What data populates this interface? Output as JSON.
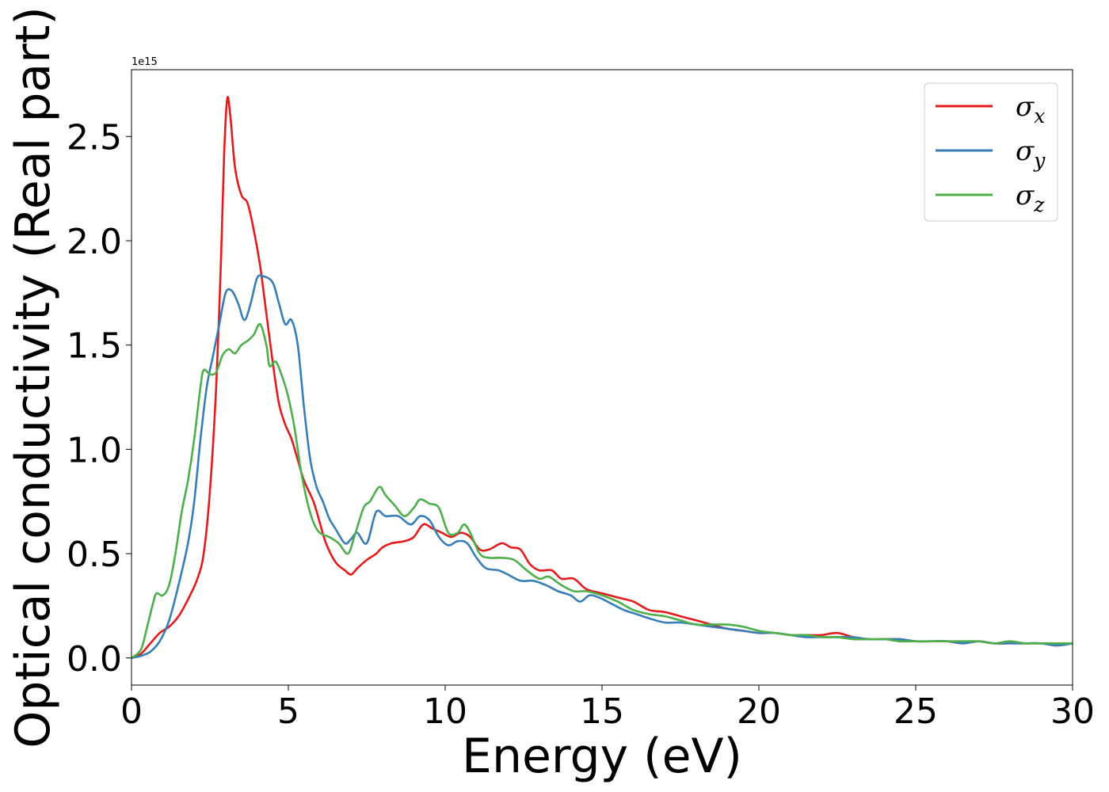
{
  "chart_data": {
    "type": "line",
    "title": "",
    "xlabel": "Energy (eV)",
    "ylabel": "Optical conductivity (Real part)",
    "y_offset_text": "1e15",
    "xlim": [
      0,
      30
    ],
    "ylim": [
      -0.13,
      2.82
    ],
    "xticks": [
      0,
      5,
      10,
      15,
      20,
      25,
      30
    ],
    "yticks": [
      0.0,
      0.5,
      1.0,
      1.5,
      2.0,
      2.5
    ],
    "xtick_labels": [
      "0",
      "5",
      "10",
      "15",
      "20",
      "25",
      "30"
    ],
    "ytick_labels": [
      "0.0",
      "0.5",
      "1.0",
      "1.5",
      "2.0",
      "2.5"
    ],
    "grid": false,
    "legend_position": "top-right",
    "series": [
      {
        "name": "σ",
        "subscript": "x",
        "color": "#e41a1c",
        "points": [
          [
            0,
            0
          ],
          [
            0.3,
            0.02
          ],
          [
            0.6,
            0.07
          ],
          [
            0.9,
            0.12
          ],
          [
            1.2,
            0.15
          ],
          [
            1.5,
            0.2
          ],
          [
            1.8,
            0.28
          ],
          [
            2.1,
            0.38
          ],
          [
            2.3,
            0.5
          ],
          [
            2.5,
            0.8
          ],
          [
            2.7,
            1.3
          ],
          [
            2.85,
            1.9
          ],
          [
            2.95,
            2.4
          ],
          [
            3.05,
            2.68
          ],
          [
            3.15,
            2.6
          ],
          [
            3.3,
            2.35
          ],
          [
            3.5,
            2.22
          ],
          [
            3.7,
            2.18
          ],
          [
            3.9,
            2.05
          ],
          [
            4.1,
            1.88
          ],
          [
            4.3,
            1.65
          ],
          [
            4.5,
            1.42
          ],
          [
            4.7,
            1.22
          ],
          [
            4.9,
            1.12
          ],
          [
            5.1,
            1.05
          ],
          [
            5.3,
            0.95
          ],
          [
            5.5,
            0.85
          ],
          [
            5.8,
            0.75
          ],
          [
            6.0,
            0.65
          ],
          [
            6.2,
            0.55
          ],
          [
            6.5,
            0.46
          ],
          [
            6.8,
            0.42
          ],
          [
            7.0,
            0.4
          ],
          [
            7.2,
            0.43
          ],
          [
            7.5,
            0.47
          ],
          [
            7.8,
            0.5
          ],
          [
            8.0,
            0.53
          ],
          [
            8.3,
            0.55
          ],
          [
            8.7,
            0.56
          ],
          [
            9.0,
            0.58
          ],
          [
            9.3,
            0.64
          ],
          [
            9.6,
            0.62
          ],
          [
            9.9,
            0.6
          ],
          [
            10.2,
            0.58
          ],
          [
            10.5,
            0.6
          ],
          [
            10.8,
            0.58
          ],
          [
            11.1,
            0.52
          ],
          [
            11.4,
            0.52
          ],
          [
            11.8,
            0.55
          ],
          [
            12.1,
            0.53
          ],
          [
            12.4,
            0.52
          ],
          [
            12.7,
            0.45
          ],
          [
            13.0,
            0.42
          ],
          [
            13.4,
            0.42
          ],
          [
            13.7,
            0.38
          ],
          [
            14.1,
            0.38
          ],
          [
            14.5,
            0.33
          ],
          [
            15.0,
            0.31
          ],
          [
            15.5,
            0.29
          ],
          [
            16.0,
            0.27
          ],
          [
            16.5,
            0.23
          ],
          [
            17.0,
            0.22
          ],
          [
            17.5,
            0.2
          ],
          [
            18.0,
            0.18
          ],
          [
            18.5,
            0.16
          ],
          [
            19.0,
            0.14
          ],
          [
            19.5,
            0.13
          ],
          [
            20.0,
            0.12
          ],
          [
            20.5,
            0.12
          ],
          [
            21.0,
            0.11
          ],
          [
            21.5,
            0.11
          ],
          [
            22.0,
            0.11
          ],
          [
            22.5,
            0.12
          ],
          [
            23.0,
            0.1
          ],
          [
            23.5,
            0.09
          ],
          [
            24.0,
            0.09
          ],
          [
            24.5,
            0.09
          ],
          [
            25.0,
            0.08
          ],
          [
            25.5,
            0.08
          ],
          [
            26.0,
            0.08
          ],
          [
            26.5,
            0.07
          ],
          [
            27.0,
            0.08
          ],
          [
            27.5,
            0.07
          ],
          [
            28.0,
            0.07
          ],
          [
            28.5,
            0.07
          ],
          [
            29.0,
            0.07
          ],
          [
            29.5,
            0.06
          ],
          [
            30.0,
            0.07
          ]
        ]
      },
      {
        "name": "σ",
        "subscript": "y",
        "color": "#377eb8",
        "points": [
          [
            0,
            0
          ],
          [
            0.3,
            0.01
          ],
          [
            0.6,
            0.03
          ],
          [
            0.9,
            0.08
          ],
          [
            1.2,
            0.18
          ],
          [
            1.5,
            0.35
          ],
          [
            1.8,
            0.55
          ],
          [
            2.0,
            0.75
          ],
          [
            2.2,
            1.05
          ],
          [
            2.4,
            1.3
          ],
          [
            2.6,
            1.45
          ],
          [
            2.8,
            1.6
          ],
          [
            3.0,
            1.75
          ],
          [
            3.2,
            1.76
          ],
          [
            3.4,
            1.7
          ],
          [
            3.6,
            1.62
          ],
          [
            3.8,
            1.7
          ],
          [
            4.0,
            1.82
          ],
          [
            4.2,
            1.83
          ],
          [
            4.5,
            1.8
          ],
          [
            4.7,
            1.7
          ],
          [
            4.9,
            1.6
          ],
          [
            5.1,
            1.62
          ],
          [
            5.3,
            1.5
          ],
          [
            5.5,
            1.2
          ],
          [
            5.7,
            0.95
          ],
          [
            5.9,
            0.82
          ],
          [
            6.1,
            0.75
          ],
          [
            6.3,
            0.67
          ],
          [
            6.5,
            0.62
          ],
          [
            6.8,
            0.55
          ],
          [
            7.0,
            0.57
          ],
          [
            7.2,
            0.6
          ],
          [
            7.5,
            0.55
          ],
          [
            7.8,
            0.7
          ],
          [
            8.1,
            0.68
          ],
          [
            8.5,
            0.68
          ],
          [
            8.9,
            0.64
          ],
          [
            9.2,
            0.68
          ],
          [
            9.5,
            0.66
          ],
          [
            9.8,
            0.58
          ],
          [
            10.1,
            0.54
          ],
          [
            10.4,
            0.56
          ],
          [
            10.7,
            0.55
          ],
          [
            11.0,
            0.48
          ],
          [
            11.3,
            0.43
          ],
          [
            11.7,
            0.42
          ],
          [
            12.0,
            0.4
          ],
          [
            12.4,
            0.37
          ],
          [
            12.8,
            0.37
          ],
          [
            13.2,
            0.35
          ],
          [
            13.6,
            0.32
          ],
          [
            14.0,
            0.3
          ],
          [
            14.3,
            0.27
          ],
          [
            14.6,
            0.3
          ],
          [
            14.9,
            0.29
          ],
          [
            15.3,
            0.26
          ],
          [
            15.7,
            0.23
          ],
          [
            16.1,
            0.21
          ],
          [
            16.5,
            0.19
          ],
          [
            17.0,
            0.17
          ],
          [
            17.5,
            0.17
          ],
          [
            18.0,
            0.16
          ],
          [
            18.5,
            0.15
          ],
          [
            19.0,
            0.14
          ],
          [
            19.5,
            0.13
          ],
          [
            20.0,
            0.12
          ],
          [
            20.5,
            0.12
          ],
          [
            21.0,
            0.11
          ],
          [
            21.5,
            0.1
          ],
          [
            22.0,
            0.1
          ],
          [
            22.5,
            0.1
          ],
          [
            23.0,
            0.1
          ],
          [
            23.5,
            0.09
          ],
          [
            24.0,
            0.09
          ],
          [
            24.5,
            0.09
          ],
          [
            25.0,
            0.08
          ],
          [
            25.5,
            0.08
          ],
          [
            26.0,
            0.08
          ],
          [
            26.5,
            0.07
          ],
          [
            27.0,
            0.08
          ],
          [
            27.5,
            0.07
          ],
          [
            28.0,
            0.07
          ],
          [
            28.5,
            0.07
          ],
          [
            29.0,
            0.07
          ],
          [
            29.5,
            0.06
          ],
          [
            30.0,
            0.07
          ]
        ]
      },
      {
        "name": "σ",
        "subscript": "z",
        "color": "#4daf4a",
        "points": [
          [
            0,
            0
          ],
          [
            0.3,
            0.04
          ],
          [
            0.5,
            0.15
          ],
          [
            0.7,
            0.27
          ],
          [
            0.8,
            0.31
          ],
          [
            1.0,
            0.3
          ],
          [
            1.2,
            0.35
          ],
          [
            1.4,
            0.5
          ],
          [
            1.6,
            0.7
          ],
          [
            1.8,
            0.85
          ],
          [
            2.0,
            1.05
          ],
          [
            2.2,
            1.3
          ],
          [
            2.3,
            1.38
          ],
          [
            2.5,
            1.36
          ],
          [
            2.7,
            1.37
          ],
          [
            2.9,
            1.45
          ],
          [
            3.1,
            1.48
          ],
          [
            3.3,
            1.46
          ],
          [
            3.5,
            1.5
          ],
          [
            3.7,
            1.52
          ],
          [
            3.9,
            1.55
          ],
          [
            4.1,
            1.6
          ],
          [
            4.3,
            1.5
          ],
          [
            4.4,
            1.4
          ],
          [
            4.6,
            1.42
          ],
          [
            4.8,
            1.35
          ],
          [
            5.0,
            1.25
          ],
          [
            5.2,
            1.1
          ],
          [
            5.4,
            0.9
          ],
          [
            5.6,
            0.75
          ],
          [
            5.8,
            0.65
          ],
          [
            6.0,
            0.6
          ],
          [
            6.3,
            0.58
          ],
          [
            6.6,
            0.55
          ],
          [
            6.9,
            0.5
          ],
          [
            7.1,
            0.58
          ],
          [
            7.4,
            0.72
          ],
          [
            7.6,
            0.75
          ],
          [
            7.9,
            0.82
          ],
          [
            8.1,
            0.78
          ],
          [
            8.4,
            0.73
          ],
          [
            8.7,
            0.68
          ],
          [
            9.0,
            0.72
          ],
          [
            9.2,
            0.76
          ],
          [
            9.5,
            0.74
          ],
          [
            9.8,
            0.72
          ],
          [
            10.1,
            0.6
          ],
          [
            10.4,
            0.6
          ],
          [
            10.6,
            0.64
          ],
          [
            10.8,
            0.6
          ],
          [
            11.1,
            0.5
          ],
          [
            11.4,
            0.48
          ],
          [
            11.8,
            0.48
          ],
          [
            12.2,
            0.47
          ],
          [
            12.6,
            0.42
          ],
          [
            13.0,
            0.38
          ],
          [
            13.3,
            0.39
          ],
          [
            13.7,
            0.35
          ],
          [
            14.1,
            0.32
          ],
          [
            14.5,
            0.32
          ],
          [
            15.0,
            0.3
          ],
          [
            15.5,
            0.27
          ],
          [
            16.0,
            0.23
          ],
          [
            16.5,
            0.21
          ],
          [
            17.0,
            0.2
          ],
          [
            17.5,
            0.18
          ],
          [
            18.0,
            0.16
          ],
          [
            18.5,
            0.16
          ],
          [
            19.0,
            0.16
          ],
          [
            19.5,
            0.15
          ],
          [
            20.0,
            0.13
          ],
          [
            20.5,
            0.12
          ],
          [
            21.0,
            0.11
          ],
          [
            21.5,
            0.11
          ],
          [
            22.0,
            0.1
          ],
          [
            22.5,
            0.1
          ],
          [
            23.0,
            0.09
          ],
          [
            23.5,
            0.09
          ],
          [
            24.0,
            0.09
          ],
          [
            24.5,
            0.08
          ],
          [
            25.0,
            0.08
          ],
          [
            25.5,
            0.08
          ],
          [
            26.0,
            0.08
          ],
          [
            26.5,
            0.08
          ],
          [
            27.0,
            0.08
          ],
          [
            27.5,
            0.07
          ],
          [
            28.0,
            0.08
          ],
          [
            28.5,
            0.07
          ],
          [
            29.0,
            0.07
          ],
          [
            29.5,
            0.07
          ],
          [
            30.0,
            0.07
          ]
        ]
      }
    ]
  }
}
